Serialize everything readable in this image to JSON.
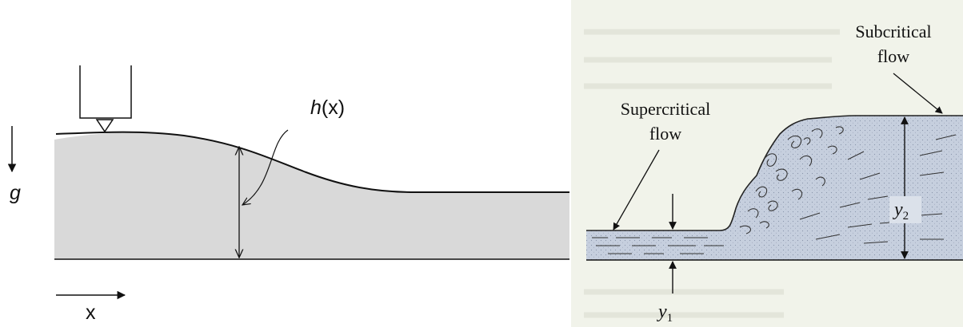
{
  "left_panel": {
    "gravity_label": "g",
    "height_label_h": "h",
    "height_label_x": "(x)",
    "x_axis_label": "x"
  },
  "right_panel": {
    "supercritical_line1": "Supercritical",
    "supercritical_line2": "flow",
    "subcritical_line1": "Subcritical",
    "subcritical_line2": "flow",
    "y2_label": "y",
    "y2_sub": "2",
    "y1_label": "y",
    "y1_sub": "1"
  },
  "colors": {
    "fluid_fill_left": "#d9d9d9",
    "fluid_fill_right": "#c6cfde",
    "paper_tint": "#f1f3ea",
    "ink": "#111111"
  }
}
